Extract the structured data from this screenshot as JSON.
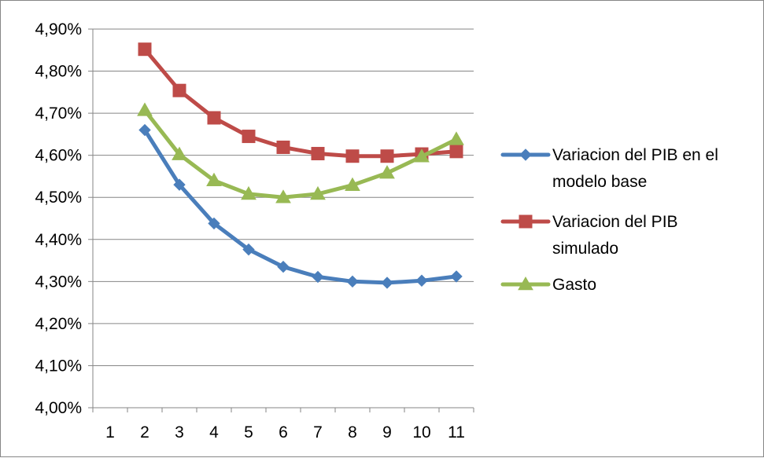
{
  "chart_data": {
    "type": "line",
    "title": "",
    "xlabel": "",
    "ylabel": "",
    "x": [
      1,
      2,
      3,
      4,
      5,
      6,
      7,
      8,
      9,
      10,
      11
    ],
    "xticks": [
      "1",
      "2",
      "3",
      "4",
      "5",
      "6",
      "7",
      "8",
      "9",
      "10",
      "11"
    ],
    "ylim": [
      0.04,
      0.049
    ],
    "yticks": [
      "4,00%",
      "4,10%",
      "4,20%",
      "4,30%",
      "4,40%",
      "4,50%",
      "4,60%",
      "4,70%",
      "4,80%",
      "4,90%"
    ],
    "grid": "horizontal",
    "legend_position": "right",
    "series": [
      {
        "name": "Variacion del PIB en el modelo base",
        "name_lines": [
          "Variacion del PIB en el",
          "modelo base"
        ],
        "color": "#4A7EBB",
        "marker": "diamond",
        "values": [
          null,
          0.0466,
          0.0453,
          0.04438,
          0.04376,
          0.04335,
          0.04311,
          0.043,
          0.04297,
          0.04302,
          0.04312
        ]
      },
      {
        "name": "Variacion del PIB simulado",
        "name_lines": [
          "Variacion del PIB",
          "simulado"
        ],
        "color": "#BE4B48",
        "marker": "square",
        "values": [
          null,
          0.04852,
          0.04754,
          0.04689,
          0.04645,
          0.04619,
          0.04604,
          0.04598,
          0.04598,
          0.04603,
          0.04609
        ]
      },
      {
        "name": "Gasto",
        "name_lines": [
          "Gasto"
        ],
        "color": "#98B954",
        "marker": "triangle",
        "values": [
          null,
          0.04707,
          0.04602,
          0.0454,
          0.04508,
          0.045,
          0.04508,
          0.04529,
          0.04558,
          0.04597,
          0.04638
        ]
      }
    ]
  }
}
